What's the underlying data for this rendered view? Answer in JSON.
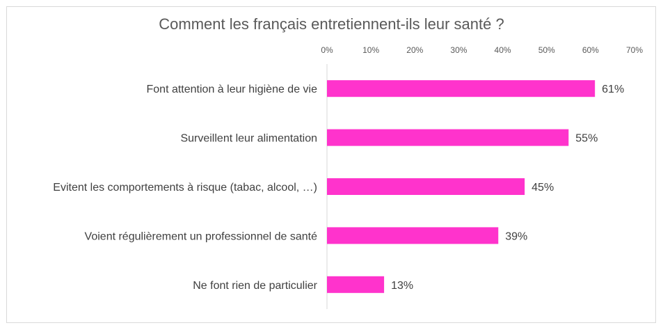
{
  "chart_data": {
    "type": "bar",
    "orientation": "horizontal",
    "title": "Comment les français entretiennent-ils leur santé ?",
    "categories": [
      "Font attention à leur higiène de vie",
      "Surveillent leur alimentation",
      "Evitent les comportements à risque (tabac, alcool, …)",
      "Voient régulièrement un professionnel de santé",
      "Ne font rien de particulier"
    ],
    "values": [
      61,
      55,
      45,
      39,
      13
    ],
    "value_labels": [
      "61%",
      "55%",
      "45%",
      "39%",
      "13%"
    ],
    "xlim": [
      0,
      70
    ],
    "xticks": [
      "0%",
      "10%",
      "20%",
      "30%",
      "40%",
      "50%",
      "60%",
      "70%"
    ],
    "axis_position": "top",
    "grid": false,
    "legend": "none",
    "bar_color": "#ff33cc"
  }
}
